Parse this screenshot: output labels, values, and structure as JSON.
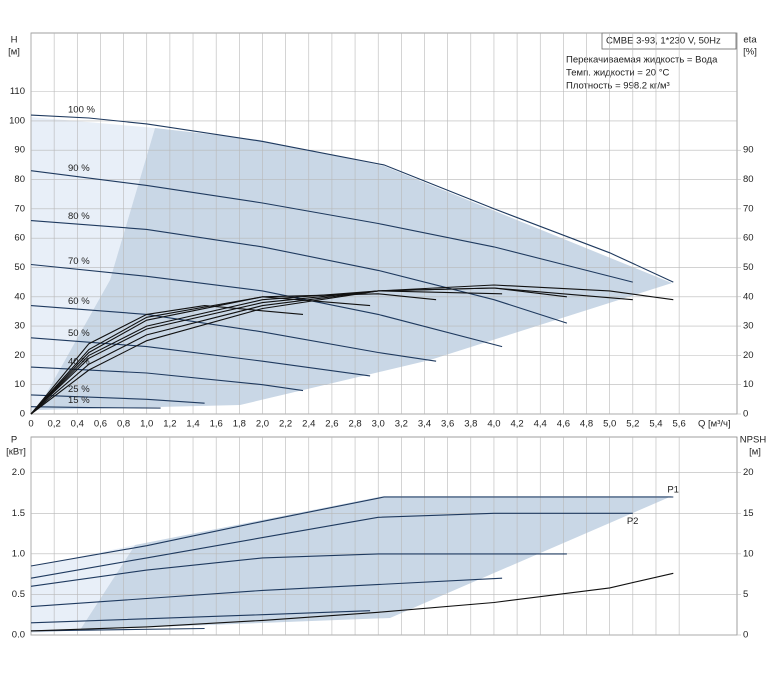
{
  "chart_data": [
    {
      "type": "line",
      "y_label": "H",
      "y_unit": "[м]",
      "y2_label": "eta",
      "y2_unit": "[%]",
      "x_label": "Q [м³/ч]",
      "annotations": [
        "CMBE 3-93, 1*230 V, 50Hz",
        "Перекачиваемая жидкость = Вода",
        "Темп. жидкости = 20 °C",
        "Плотность = 998.2 кг/м³"
      ],
      "xlim": [
        0,
        6.1
      ],
      "xticks": [
        0,
        {
          "value": 0.2,
          "label": "0,2"
        },
        {
          "value": 0.4,
          "label": "0,4"
        },
        {
          "value": 0.6,
          "label": "0,6"
        },
        {
          "value": 0.8,
          "label": "0,8"
        },
        {
          "value": 1,
          "label": "1,0"
        },
        {
          "value": 1.2,
          "label": "1,2"
        },
        {
          "value": 1.4,
          "label": "1,4"
        },
        {
          "value": 1.6,
          "label": "1,6"
        },
        {
          "value": 1.8,
          "label": "1,8"
        },
        {
          "value": 2,
          "label": "2,0"
        },
        {
          "value": 2.2,
          "label": "2,2"
        },
        {
          "value": 2.4,
          "label": "2,4"
        },
        {
          "value": 2.6,
          "label": "2,6"
        },
        {
          "value": 2.8,
          "label": "2,8"
        },
        {
          "value": 3,
          "label": "3,0"
        },
        {
          "value": 3.2,
          "label": "3,2"
        },
        {
          "value": 3.4,
          "label": "3,4"
        },
        {
          "value": 3.6,
          "label": "3,6"
        },
        {
          "value": 3.8,
          "label": "3,8"
        },
        {
          "value": 4,
          "label": "4,0"
        },
        {
          "value": 4.2,
          "label": "4,2"
        },
        {
          "value": 4.4,
          "label": "4,4"
        },
        {
          "value": 4.6,
          "label": "4,6"
        },
        {
          "value": 4.8,
          "label": "4,8"
        },
        {
          "value": 5,
          "label": "5,0"
        },
        {
          "value": 5.2,
          "label": "5,2"
        },
        {
          "value": 5.4,
          "label": "5,4"
        },
        {
          "value": 5.6,
          "label": "5,6"
        }
      ],
      "ylim": [
        0,
        130
      ],
      "yticks": [
        0,
        10,
        20,
        30,
        40,
        50,
        60,
        70,
        80,
        90,
        100,
        110
      ],
      "y2lim": [
        0,
        130
      ],
      "y2ticks": [
        0,
        10,
        20,
        30,
        40,
        50,
        60,
        70,
        80,
        90
      ],
      "grid": true,
      "series": [
        {
          "name": "100 %",
          "color": "#1f3a5f",
          "x": [
            0,
            0.5,
            1,
            2,
            3.05,
            4,
            5,
            5.55
          ],
          "values": [
            102,
            101,
            99,
            93,
            85,
            70,
            55,
            45
          ]
        },
        {
          "name": "90 %",
          "color": "#1f3a5f",
          "x": [
            0,
            1,
            2,
            3,
            4,
            4.6,
            5.2
          ],
          "values": [
            83,
            78,
            72,
            65,
            57,
            51,
            45
          ]
        },
        {
          "name": "80 %",
          "color": "#1f3a5f",
          "x": [
            0,
            1,
            2,
            3,
            4,
            4.63
          ],
          "values": [
            66,
            63,
            57,
            49,
            39,
            31
          ]
        },
        {
          "name": "70 %",
          "color": "#1f3a5f",
          "x": [
            0,
            1,
            2,
            3,
            4.07
          ],
          "values": [
            51,
            47,
            42,
            34,
            23
          ]
        },
        {
          "name": "60 %",
          "color": "#1f3a5f",
          "x": [
            0,
            1,
            2,
            3,
            3.5
          ],
          "values": [
            37,
            34,
            28,
            21,
            18
          ]
        },
        {
          "name": "50 %",
          "color": "#1f3a5f",
          "x": [
            0,
            1,
            2,
            2.93
          ],
          "values": [
            26,
            23,
            18,
            13
          ]
        },
        {
          "name": "40 %",
          "color": "#1f3a5f",
          "x": [
            0,
            1,
            2,
            2.35
          ],
          "values": [
            16,
            14,
            10,
            8
          ]
        },
        {
          "name": "25 %",
          "color": "#1f3a5f",
          "x": [
            0,
            1,
            1.5
          ],
          "values": [
            6.5,
            5,
            3.7
          ]
        },
        {
          "name": "15 %",
          "color": "#1f3a5f",
          "x": [
            0,
            0.5,
            1.12
          ],
          "values": [
            2.5,
            2.2,
            2
          ]
        },
        {
          "color": "#111111",
          "axis": "y2",
          "x": [
            0,
            0.5,
            1,
            2,
            3,
            4,
            5,
            5.55
          ],
          "values": [
            0,
            15,
            25,
            36,
            42,
            44,
            42,
            39
          ]
        },
        {
          "color": "#111111",
          "axis": "y2",
          "x": [
            0,
            0.5,
            1,
            2,
            3,
            4,
            5.2
          ],
          "values": [
            0,
            17,
            27,
            37,
            42,
            43,
            39
          ]
        },
        {
          "color": "#111111",
          "axis": "y2",
          "x": [
            0,
            0.5,
            1,
            2,
            3,
            4,
            4.63
          ],
          "values": [
            0,
            19,
            29,
            38,
            42,
            43,
            40
          ]
        },
        {
          "color": "#111111",
          "axis": "y2",
          "x": [
            0,
            0.5,
            1,
            2,
            3,
            4.07
          ],
          "values": [
            0,
            20,
            30,
            39,
            42,
            41
          ]
        },
        {
          "color": "#111111",
          "axis": "y2",
          "x": [
            0,
            0.5,
            1,
            2,
            3,
            3.5
          ],
          "values": [
            0,
            21,
            32,
            40,
            41,
            39
          ]
        },
        {
          "color": "#111111",
          "axis": "y2",
          "x": [
            0,
            0.5,
            1,
            2,
            2.93
          ],
          "values": [
            0,
            22,
            33,
            40,
            37
          ]
        },
        {
          "color": "#111111",
          "axis": "y2",
          "x": [
            0,
            0.5,
            1,
            1.5,
            2.35
          ],
          "values": [
            0,
            24,
            34,
            37,
            34
          ]
        }
      ]
    },
    {
      "type": "line",
      "y_label": "P",
      "y_unit": "[кВт]",
      "y2_label": "NPSH",
      "y2_unit": "[м]",
      "xlim": [
        0,
        6.1
      ],
      "ylim": [
        0,
        2.44
      ],
      "yticks": [
        {
          "value": 0,
          "label": "0.0"
        },
        {
          "value": 0.5,
          "label": "0.5"
        },
        {
          "value": 1,
          "label": "1.0"
        },
        {
          "value": 1.5,
          "label": "1.5"
        },
        {
          "value": 2,
          "label": "2.0"
        }
      ],
      "y2lim": [
        0,
        24.4
      ],
      "y2ticks": [
        0,
        5,
        10,
        15,
        20
      ],
      "grid": true,
      "series": [
        {
          "name": "P1",
          "color": "#1f3a5f",
          "x": [
            0,
            1,
            2,
            3.05,
            4,
            5.55
          ],
          "values": [
            0.85,
            1.1,
            1.4,
            1.7,
            1.7,
            1.7
          ]
        },
        {
          "name": "P2",
          "color": "#1f3a5f",
          "x": [
            0,
            1,
            2,
            3,
            4,
            5.2
          ],
          "values": [
            0.7,
            0.95,
            1.2,
            1.45,
            1.5,
            1.5
          ]
        },
        {
          "color": "#1f3a5f",
          "x": [
            0,
            1,
            2,
            3,
            4.63
          ],
          "values": [
            0.6,
            0.8,
            0.95,
            1,
            1
          ]
        },
        {
          "color": "#1f3a5f",
          "x": [
            0,
            2,
            4.07
          ],
          "values": [
            0.35,
            0.55,
            0.7
          ]
        },
        {
          "color": "#1f3a5f",
          "x": [
            0,
            2,
            2.93
          ],
          "values": [
            0.15,
            0.25,
            0.3
          ]
        },
        {
          "color": "#1f3a5f",
          "x": [
            0,
            1.5
          ],
          "values": [
            0.05,
            0.08
          ]
        },
        {
          "color": "#111111",
          "axis": "y2",
          "x": [
            0,
            1,
            2,
            3,
            4,
            5,
            5.55
          ],
          "values": [
            0.5,
            1,
            1.8,
            2.8,
            4,
            5.8,
            7.6
          ]
        }
      ]
    }
  ]
}
